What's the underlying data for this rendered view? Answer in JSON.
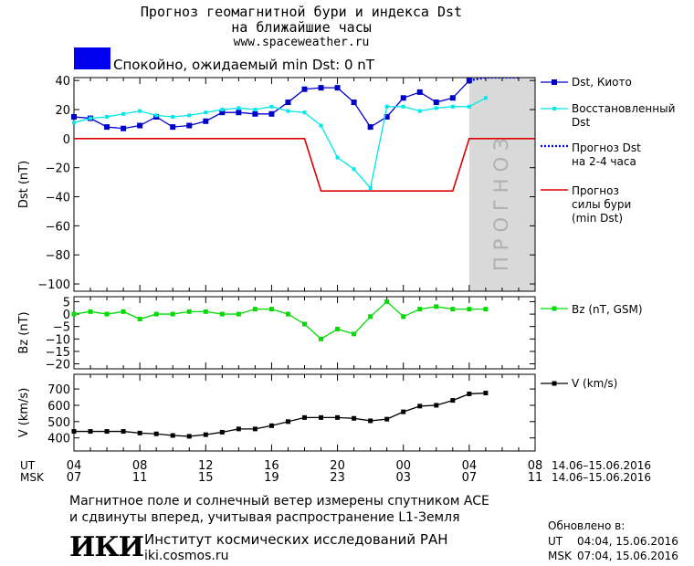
{
  "header": {
    "title_line1": "Прогноз геомагнитной бури и индекса Dst",
    "title_line2": "на ближайшие часы",
    "url": "www.spaceweather.ru"
  },
  "status": {
    "text": "Спокойно, ожидаемый min Dst: 0 nT",
    "color": "#0000ee"
  },
  "colors": {
    "dst_kyoto": "#0000cc",
    "dst_restored": "#00e8e8",
    "dst_forecast": "#0000cc",
    "storm_forecast": "#dd0000",
    "bz": "#00dd00",
    "v": "#000000",
    "forecast_band": "#d9d9d9"
  },
  "forecast_band_label": "ПРОГНОЗ",
  "x_axis": {
    "ut_label": "UT",
    "msk_label": "MSK",
    "ut_ticks": [
      "04",
      "08",
      "12",
      "16",
      "20",
      "00",
      "04",
      "08"
    ],
    "msk_ticks": [
      "07",
      "11",
      "15",
      "19",
      "23",
      "03",
      "07",
      "11"
    ],
    "ut_range": "14.06–15.06.2016",
    "msk_range": "14.06–15.06.2016"
  },
  "chart_data": [
    {
      "type": "line",
      "panel": "dst",
      "ylabel": "Dst (nT)",
      "ylim": [
        -105,
        42
      ],
      "yticks": [
        40,
        20,
        0,
        -20,
        -40,
        -60,
        -80,
        -100
      ],
      "xlim": [
        0,
        28
      ],
      "forecast_start": 24,
      "series": [
        {
          "name": "Dst, Киото",
          "x": [
            0,
            1,
            2,
            3,
            4,
            5,
            6,
            7,
            8,
            9,
            10,
            11,
            12,
            13,
            14,
            15,
            16,
            17,
            18,
            19,
            20,
            21,
            22,
            23,
            24
          ],
          "y": [
            15,
            14,
            8,
            7,
            9,
            15,
            8,
            9,
            12,
            18,
            18,
            17,
            17,
            25,
            34,
            35,
            35,
            25,
            8,
            15,
            28,
            32,
            25,
            28,
            40
          ]
        },
        {
          "name": "Восстановленный Dst",
          "x": [
            0,
            1,
            2,
            3,
            4,
            5,
            6,
            7,
            8,
            9,
            10,
            11,
            12,
            13,
            14,
            15,
            16,
            17,
            18,
            19,
            20,
            21,
            22,
            23,
            24,
            25
          ],
          "y": [
            11,
            14,
            15,
            17,
            19,
            16,
            15,
            16,
            18,
            20,
            21,
            20,
            22,
            19,
            18,
            9,
            -13,
            -21,
            -34,
            22,
            22,
            19,
            21,
            22,
            22,
            28
          ]
        },
        {
          "name": "Прогноз Dst на 2-4 часа",
          "x": [
            24,
            25,
            26,
            27
          ],
          "y": [
            40,
            42,
            42,
            42
          ]
        },
        {
          "name": "Прогноз силы бури (min Dst)",
          "x": [
            0,
            14,
            15,
            23,
            24,
            28
          ],
          "y": [
            0,
            0,
            -36,
            -36,
            0,
            0
          ]
        }
      ],
      "legend": [
        "Dst, Киото",
        "Восстановленный\nDst",
        "Прогноз Dst\nна 2-4 часа",
        "Прогноз\nсилы бури\n(min Dst)"
      ]
    },
    {
      "type": "line",
      "panel": "bz",
      "ylabel": "Bz (nT)",
      "ylim": [
        -22,
        7
      ],
      "yticks": [
        5,
        0,
        -5,
        -10,
        -15,
        -20
      ],
      "xlim": [
        0,
        28
      ],
      "series": [
        {
          "name": "Bz (nT, GSM)",
          "x": [
            0,
            1,
            2,
            3,
            4,
            5,
            6,
            7,
            8,
            9,
            10,
            11,
            12,
            13,
            14,
            15,
            16,
            17,
            18,
            19,
            20,
            21,
            22,
            23,
            24,
            25
          ],
          "y": [
            0,
            1,
            0,
            1,
            -2,
            0,
            0,
            1,
            1,
            0,
            0,
            2,
            2,
            0,
            -4,
            -10,
            -6,
            -8,
            -1,
            5,
            -1,
            2,
            3,
            2,
            2,
            2
          ]
        }
      ],
      "legend": [
        "Bz (nT, GSM)"
      ]
    },
    {
      "type": "line",
      "panel": "v",
      "ylabel": "V (km/s)",
      "ylim": [
        320,
        790
      ],
      "yticks": [
        700,
        600,
        500,
        400
      ],
      "xlim": [
        0,
        28
      ],
      "series": [
        {
          "name": "V (km/s)",
          "x": [
            0,
            1,
            2,
            3,
            4,
            5,
            6,
            7,
            8,
            9,
            10,
            11,
            12,
            13,
            14,
            15,
            16,
            17,
            18,
            19,
            20,
            21,
            22,
            23,
            24,
            25
          ],
          "y": [
            440,
            440,
            440,
            440,
            430,
            425,
            415,
            410,
            420,
            435,
            455,
            455,
            475,
            500,
            525,
            525,
            525,
            520,
            505,
            515,
            560,
            595,
            600,
            630,
            670,
            675
          ]
        }
      ],
      "legend": [
        "V (km/s)"
      ]
    }
  ],
  "footer": {
    "line1": "Магнитное поле и солнечный ветер измерены спутником ACE",
    "line2": "и сдвинуты вперед, учитывая распространение L1-Земля",
    "logo": "ИКИ",
    "institute": "Институт космических исследований РАН",
    "site": "iki.cosmos.ru",
    "updated_label": "Обновлено в:",
    "updated_ut_label": "UT",
    "updated_ut": "04:04, 15.06.2016",
    "updated_msk_label": "MSK",
    "updated_msk": "07:04, 15.06.2016"
  }
}
